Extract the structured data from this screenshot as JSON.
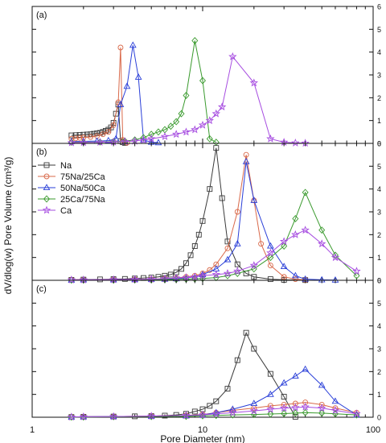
{
  "figure": {
    "ylabel": "dV/dlog(w) Pore Volume (cm³/g)",
    "xlabel": "Pore Diameter (nm)",
    "x_tick_labels": [
      "1",
      "10",
      "100"
    ]
  },
  "legend": {
    "placement": "upper-left of panel (b)",
    "entries": [
      "Na",
      "75Na/25Ca",
      "50Na/50Ca",
      "25Ca/75Na",
      "Ca"
    ]
  },
  "series_styles": [
    {
      "name": "Na",
      "color": "#3a3a3a",
      "marker": "square"
    },
    {
      "name": "75Na/25Ca",
      "color": "#d9694a",
      "marker": "circle"
    },
    {
      "name": "50Na/50Ca",
      "color": "#2a3fd8",
      "marker": "triangle"
    },
    {
      "name": "25Ca/75Na",
      "color": "#3a9a2e",
      "marker": "diamond"
    },
    {
      "name": "Ca",
      "color": "#a64ce0",
      "marker": "star"
    }
  ],
  "chart_data": [
    {
      "type": "line",
      "panel_label": "(a)",
      "xscale": "log",
      "xlim": [
        1,
        100
      ],
      "ylim": [
        0,
        6
      ],
      "y_ticks": [
        0,
        1,
        2,
        3,
        4,
        5,
        6
      ],
      "grid": false,
      "series": [
        {
          "name": "Na",
          "x": [
            1.7,
            1.8,
            1.9,
            2.0,
            2.1,
            2.2,
            2.3,
            2.4,
            2.5,
            2.6,
            2.7,
            2.8,
            2.9,
            3.0,
            3.1,
            3.2,
            3.3,
            3.4,
            3.5
          ],
          "y": [
            0.35,
            0.36,
            0.37,
            0.38,
            0.39,
            0.4,
            0.42,
            0.44,
            0.46,
            0.5,
            0.55,
            0.6,
            0.7,
            0.9,
            1.3,
            1.7,
            0.1,
            0.05,
            0.02
          ]
        },
        {
          "name": "75Na/25Ca",
          "x": [
            1.7,
            1.8,
            1.9,
            2.0,
            2.2,
            2.4,
            2.6,
            2.8,
            3.0,
            3.2,
            3.3,
            3.4,
            3.6
          ],
          "y": [
            0.2,
            0.22,
            0.24,
            0.26,
            0.28,
            0.32,
            0.4,
            0.5,
            0.8,
            1.8,
            4.2,
            0.15,
            0.03
          ]
        },
        {
          "name": "50Na/50Ca",
          "x": [
            1.7,
            2.0,
            2.4,
            2.8,
            3.1,
            3.3,
            3.6,
            3.9,
            4.2,
            4.5,
            5.0,
            5.5
          ],
          "y": [
            0.08,
            0.09,
            0.1,
            0.12,
            0.2,
            1.7,
            2.5,
            4.3,
            2.9,
            0.15,
            0.05,
            0.03
          ]
        },
        {
          "name": "25Ca/75Na",
          "x": [
            1.7,
            2.0,
            2.5,
            3.0,
            3.5,
            4.0,
            4.5,
            5.0,
            5.5,
            6.0,
            6.5,
            7.0,
            7.5,
            8.0,
            9.0,
            10.0,
            11.0,
            12.0
          ],
          "y": [
            0.05,
            0.05,
            0.06,
            0.08,
            0.1,
            0.15,
            0.25,
            0.4,
            0.5,
            0.6,
            0.75,
            0.95,
            1.3,
            2.1,
            4.5,
            2.75,
            0.2,
            0.05
          ]
        },
        {
          "name": "Ca",
          "x": [
            1.7,
            2.0,
            2.5,
            3.0,
            3.5,
            4.0,
            4.5,
            5.0,
            6.0,
            7.0,
            8.0,
            9.0,
            10.0,
            11.0,
            12.0,
            13.0,
            15.0,
            20.0,
            25.0,
            30.0,
            35.0,
            40.0
          ],
          "y": [
            0.03,
            0.04,
            0.05,
            0.06,
            0.08,
            0.1,
            0.15,
            0.2,
            0.3,
            0.4,
            0.5,
            0.6,
            0.8,
            1.0,
            1.3,
            1.6,
            3.8,
            2.65,
            0.2,
            0.05,
            0.02,
            0.01
          ]
        }
      ]
    },
    {
      "type": "line",
      "panel_label": "(b)",
      "xscale": "log",
      "xlim": [
        1,
        100
      ],
      "ylim": [
        0,
        6
      ],
      "y_ticks": [
        0,
        1,
        2,
        3,
        4,
        5,
        6
      ],
      "grid": false,
      "series": [
        {
          "name": "Na",
          "x": [
            1.7,
            2.0,
            2.5,
            3.0,
            3.5,
            4.0,
            4.5,
            5.0,
            5.5,
            6.0,
            6.5,
            7.0,
            7.5,
            8.0,
            8.5,
            9.0,
            9.5,
            10.0,
            11.0,
            12.0,
            13.0,
            14.0,
            16.0,
            18.0,
            20.0,
            25.0,
            30.0,
            40.0
          ],
          "y": [
            0.02,
            0.03,
            0.04,
            0.05,
            0.06,
            0.08,
            0.1,
            0.12,
            0.15,
            0.2,
            0.25,
            0.35,
            0.5,
            0.75,
            1.1,
            1.5,
            2.0,
            2.6,
            4.0,
            5.8,
            3.6,
            1.7,
            0.7,
            0.3,
            0.15,
            0.05,
            0.02,
            0.01
          ]
        },
        {
          "name": "75Na/25Ca",
          "x": [
            1.7,
            2.0,
            3.0,
            4.0,
            5.0,
            6.0,
            7.0,
            8.0,
            9.0,
            10.0,
            11.0,
            12.0,
            14.0,
            16.0,
            18.0,
            20.0,
            22.0,
            25.0,
            30.0,
            35.0,
            40.0
          ],
          "y": [
            0.02,
            0.02,
            0.03,
            0.04,
            0.05,
            0.07,
            0.1,
            0.15,
            0.2,
            0.3,
            0.45,
            0.7,
            1.4,
            3.0,
            5.5,
            3.5,
            1.6,
            0.65,
            0.15,
            0.05,
            0.02
          ]
        },
        {
          "name": "50Na/50Ca",
          "x": [
            1.7,
            2.0,
            3.0,
            4.0,
            5.0,
            6.0,
            7.0,
            8.0,
            9.0,
            10.0,
            12.0,
            14.0,
            16.0,
            18.0,
            20.0,
            25.0,
            30.0,
            35.0,
            40.0,
            50.0,
            60.0
          ],
          "y": [
            0.01,
            0.02,
            0.02,
            0.03,
            0.04,
            0.05,
            0.07,
            0.1,
            0.15,
            0.25,
            0.5,
            0.9,
            1.6,
            5.2,
            3.5,
            1.5,
            0.6,
            0.2,
            0.05,
            0.02,
            0.01
          ]
        },
        {
          "name": "25Ca/75Na",
          "x": [
            1.7,
            2.0,
            3.0,
            4.0,
            5.0,
            6.0,
            7.0,
            8.0,
            9.0,
            10.0,
            12.0,
            14.0,
            16.0,
            20.0,
            25.0,
            30.0,
            35.0,
            40.0,
            50.0,
            60.0,
            80.0
          ],
          "y": [
            0.01,
            0.01,
            0.01,
            0.02,
            0.02,
            0.03,
            0.04,
            0.05,
            0.06,
            0.08,
            0.12,
            0.2,
            0.3,
            0.5,
            1.0,
            1.5,
            2.7,
            3.85,
            2.2,
            1.1,
            0.2
          ]
        },
        {
          "name": "Ca",
          "x": [
            1.7,
            2.0,
            3.0,
            4.0,
            5.0,
            6.0,
            7.0,
            8.0,
            9.0,
            10.0,
            12.0,
            14.0,
            16.0,
            20.0,
            25.0,
            30.0,
            35.0,
            40.0,
            50.0,
            60.0,
            80.0
          ],
          "y": [
            0.02,
            0.02,
            0.03,
            0.04,
            0.05,
            0.07,
            0.1,
            0.12,
            0.15,
            0.2,
            0.25,
            0.3,
            0.4,
            0.65,
            1.2,
            1.7,
            2.0,
            2.2,
            1.6,
            1.0,
            0.4
          ]
        }
      ]
    },
    {
      "type": "line",
      "panel_label": "(c)",
      "xscale": "log",
      "xlim": [
        1,
        100
      ],
      "ylim": [
        0,
        6
      ],
      "y_ticks": [
        0,
        1,
        2,
        3,
        4,
        5,
        6
      ],
      "grid": false,
      "series": [
        {
          "name": "Na",
          "x": [
            1.7,
            2.0,
            3.0,
            4.0,
            5.0,
            6.0,
            7.0,
            8.0,
            9.0,
            10.0,
            11.0,
            12.0,
            14.0,
            16.0,
            18.0,
            20.0,
            25.0,
            30.0,
            35.0
          ],
          "y": [
            0.01,
            0.02,
            0.03,
            0.04,
            0.05,
            0.07,
            0.1,
            0.15,
            0.25,
            0.35,
            0.5,
            0.7,
            1.25,
            2.5,
            3.7,
            3.0,
            1.9,
            0.9,
            0.02
          ]
        },
        {
          "name": "75Na/25Ca",
          "x": [
            1.7,
            2.0,
            3.0,
            5.0,
            8.0,
            10.0,
            12.0,
            15.0,
            20.0,
            25.0,
            30.0,
            35.0,
            40.0,
            50.0,
            60.0,
            80.0
          ],
          "y": [
            0.01,
            0.02,
            0.03,
            0.05,
            0.08,
            0.12,
            0.2,
            0.3,
            0.4,
            0.5,
            0.55,
            0.6,
            0.65,
            0.55,
            0.4,
            0.2
          ]
        },
        {
          "name": "50Na/50Ca",
          "x": [
            1.7,
            2.0,
            3.0,
            5.0,
            8.0,
            10.0,
            12.0,
            15.0,
            20.0,
            25.0,
            30.0,
            35.0,
            40.0,
            50.0,
            60.0,
            80.0
          ],
          "y": [
            0.01,
            0.02,
            0.03,
            0.04,
            0.06,
            0.1,
            0.2,
            0.35,
            0.6,
            1.0,
            1.5,
            1.8,
            2.1,
            1.4,
            0.7,
            0.1
          ]
        },
        {
          "name": "25Ca/75Na",
          "x": [
            1.7,
            2.0,
            3.0,
            5.0,
            8.0,
            10.0,
            12.0,
            15.0,
            20.0,
            25.0,
            30.0,
            35.0,
            40.0,
            50.0,
            60.0,
            80.0
          ],
          "y": [
            0.01,
            0.01,
            0.02,
            0.03,
            0.04,
            0.06,
            0.08,
            0.1,
            0.12,
            0.14,
            0.16,
            0.18,
            0.2,
            0.18,
            0.15,
            0.1
          ]
        },
        {
          "name": "Ca",
          "x": [
            1.7,
            2.0,
            3.0,
            5.0,
            8.0,
            10.0,
            12.0,
            15.0,
            20.0,
            25.0,
            30.0,
            35.0,
            40.0,
            50.0,
            60.0,
            80.0
          ],
          "y": [
            0.01,
            0.02,
            0.03,
            0.05,
            0.08,
            0.1,
            0.15,
            0.2,
            0.28,
            0.35,
            0.4,
            0.42,
            0.45,
            0.4,
            0.3,
            0.15
          ]
        }
      ]
    }
  ]
}
